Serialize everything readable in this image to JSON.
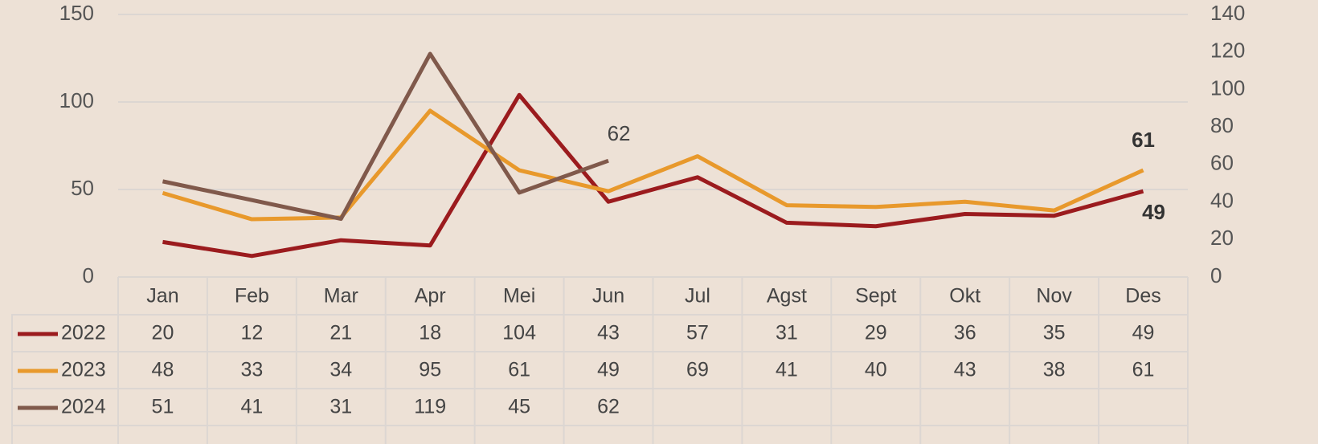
{
  "chart_data": {
    "type": "line",
    "categories": [
      "Jan",
      "Feb",
      "Mar",
      "Apr",
      "Mei",
      "Jun",
      "Jul",
      "Agst",
      "Sept",
      "Okt",
      "Nov",
      "Des"
    ],
    "series": [
      {
        "name": "2022",
        "color": "#9b1b1e",
        "values": [
          20,
          12,
          21,
          18,
          104,
          43,
          57,
          31,
          29,
          36,
          35,
          49
        ],
        "label_index": 11,
        "label_bold": true,
        "label_position": "below"
      },
      {
        "name": "2023",
        "color": "#e8992c",
        "values": [
          48,
          33,
          34,
          95,
          61,
          49,
          69,
          41,
          40,
          43,
          38,
          61
        ],
        "label_index": 11,
        "label_bold": true,
        "label_position": "above"
      },
      {
        "name": "2024",
        "color": "#80594b",
        "axis": "y2",
        "values": [
          51,
          41,
          31,
          119,
          45,
          62,
          null,
          null,
          null,
          null,
          null,
          null
        ],
        "label_index": 5,
        "label_bold": false,
        "label_position": "above-right"
      }
    ],
    "ylim": [
      0,
      150
    ],
    "yticks": [
      0,
      50,
      100,
      150
    ],
    "y2lim": [
      0,
      140
    ],
    "y2ticks": [
      0,
      20,
      40,
      60,
      80,
      100,
      120,
      140
    ],
    "grid": true,
    "data_table": true
  }
}
